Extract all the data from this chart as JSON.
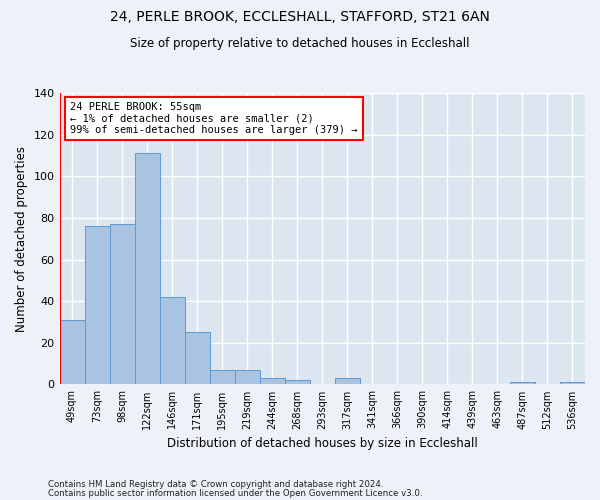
{
  "title1": "24, PERLE BROOK, ECCLESHALL, STAFFORD, ST21 6AN",
  "title2": "Size of property relative to detached houses in Eccleshall",
  "xlabel": "Distribution of detached houses by size in Eccleshall",
  "ylabel": "Number of detached properties",
  "categories": [
    "49sqm",
    "73sqm",
    "98sqm",
    "122sqm",
    "146sqm",
    "171sqm",
    "195sqm",
    "219sqm",
    "244sqm",
    "268sqm",
    "293sqm",
    "317sqm",
    "341sqm",
    "366sqm",
    "390sqm",
    "414sqm",
    "439sqm",
    "463sqm",
    "487sqm",
    "512sqm",
    "536sqm"
  ],
  "values": [
    31,
    76,
    77,
    111,
    42,
    25,
    7,
    7,
    3,
    2,
    0,
    3,
    0,
    0,
    0,
    0,
    0,
    0,
    1,
    0,
    1
  ],
  "bar_color": "#a8c4e0",
  "bar_edge_color": "#5b9bd5",
  "annotation_title": "24 PERLE BROOK: 55sqm",
  "annotation_line1": "← 1% of detached houses are smaller (2)",
  "annotation_line2": "99% of semi-detached houses are larger (379) →",
  "annotation_box_color": "#ffffff",
  "annotation_box_edge": "#ff0000",
  "ylim": [
    0,
    140
  ],
  "yticks": [
    0,
    20,
    40,
    60,
    80,
    100,
    120,
    140
  ],
  "footer1": "Contains HM Land Registry data © Crown copyright and database right 2024.",
  "footer2": "Contains public sector information licensed under the Open Government Licence v3.0.",
  "bg_color": "#eef2f8",
  "grid_color": "#ffffff",
  "axes_bg_color": "#dce6f0"
}
